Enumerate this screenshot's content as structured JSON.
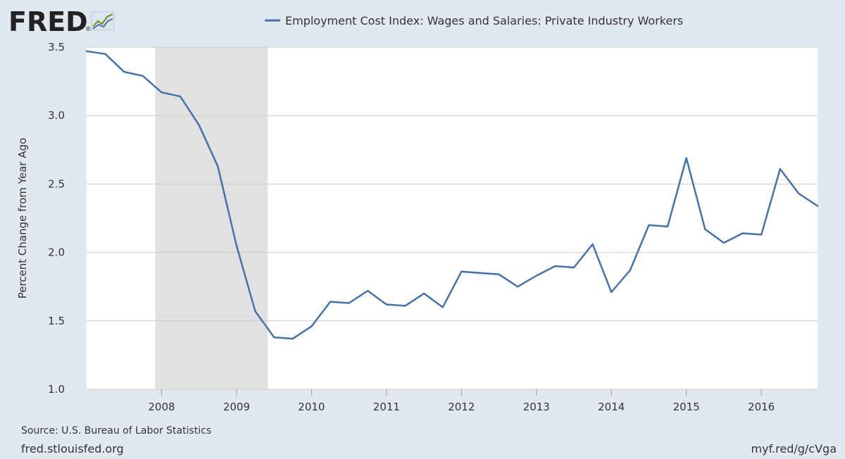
{
  "logo": {
    "text": "FRED",
    "registered": "®"
  },
  "chart_data": {
    "type": "line",
    "title": "Employment Cost Index: Wages and Salaries: Private Industry Workers",
    "ylabel": "Percent Change from Year Ago",
    "xlabel": "",
    "ylim": [
      1.0,
      3.5
    ],
    "xlim": [
      2007.0,
      2016.75
    ],
    "yticks": [
      "1.0",
      "1.5",
      "2.0",
      "2.5",
      "3.0",
      "3.5"
    ],
    "xticks": [
      "2008",
      "2009",
      "2010",
      "2011",
      "2012",
      "2013",
      "2014",
      "2015",
      "2016"
    ],
    "recession": [
      2007.917,
      2009.417
    ],
    "series": [
      {
        "name": "Employment Cost Index: Wages and Salaries: Private Industry Workers",
        "color": "#4572a7",
        "x": [
          2007.0,
          2007.25,
          2007.5,
          2007.75,
          2008.0,
          2008.25,
          2008.5,
          2008.75,
          2009.0,
          2009.25,
          2009.5,
          2009.75,
          2010.0,
          2010.25,
          2010.5,
          2010.75,
          2011.0,
          2011.25,
          2011.5,
          2011.75,
          2012.0,
          2012.25,
          2012.5,
          2012.75,
          2013.0,
          2013.25,
          2013.5,
          2013.75,
          2014.0,
          2014.25,
          2014.5,
          2014.75,
          2015.0,
          2015.25,
          2015.5,
          2015.75,
          2016.0,
          2016.25,
          2016.5,
          2016.75
        ],
        "values": [
          3.47,
          3.45,
          3.32,
          3.29,
          3.17,
          3.14,
          2.93,
          2.63,
          2.05,
          1.57,
          1.38,
          1.37,
          1.46,
          1.64,
          1.63,
          1.72,
          1.62,
          1.61,
          1.7,
          1.6,
          1.86,
          1.85,
          1.84,
          1.75,
          1.83,
          1.9,
          1.89,
          2.06,
          1.71,
          1.87,
          2.2,
          2.19,
          2.69,
          2.17,
          2.07,
          2.14,
          2.13,
          2.61,
          2.43,
          2.34
        ]
      }
    ]
  },
  "footer": {
    "source": "Source: U.S. Bureau of Labor Statistics",
    "site": "fred.stlouisfed.org",
    "shortlink": "myf.red/g/cVga"
  },
  "colors": {
    "background": "#e1e9f0",
    "plot_background": "#ffffff",
    "recession": "#e1e1e1",
    "grid": "#cccccc",
    "series": "#4572a7",
    "text": "#333333",
    "logo": "#222222"
  }
}
